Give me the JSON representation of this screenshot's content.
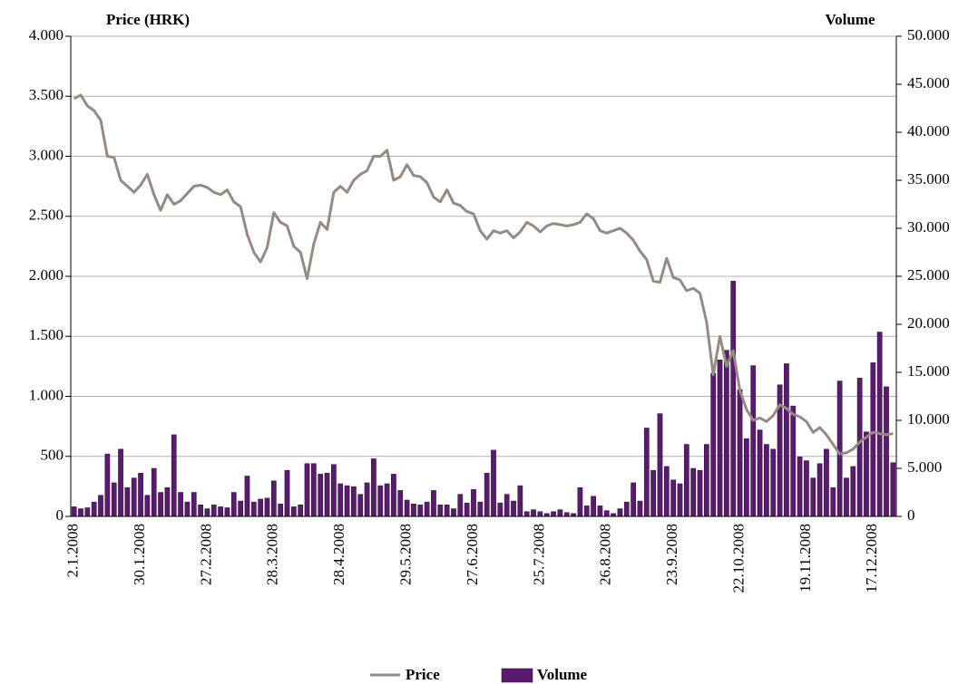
{
  "chart_data": {
    "type": "bar-line",
    "y_label": "Price (HRK)",
    "y2_label": "Volume",
    "categories": [
      "2.1.2008",
      null,
      null,
      null,
      null,
      null,
      null,
      null,
      null,
      null,
      "30.1.2008",
      null,
      null,
      null,
      null,
      null,
      null,
      null,
      null,
      null,
      "27.2.2008",
      null,
      null,
      null,
      null,
      null,
      null,
      null,
      null,
      null,
      "28.3.2008",
      null,
      null,
      null,
      null,
      null,
      null,
      null,
      null,
      null,
      "28.4.2008",
      null,
      null,
      null,
      null,
      null,
      null,
      null,
      null,
      null,
      "29.5.2008",
      null,
      null,
      null,
      null,
      null,
      null,
      null,
      null,
      null,
      "27.6.2008",
      null,
      null,
      null,
      null,
      null,
      null,
      null,
      null,
      null,
      "25.7.2008",
      null,
      null,
      null,
      null,
      null,
      null,
      null,
      null,
      null,
      "26.8.2008",
      null,
      null,
      null,
      null,
      null,
      null,
      null,
      null,
      null,
      "23.9.2008",
      null,
      null,
      null,
      null,
      null,
      null,
      null,
      null,
      null,
      "22.10.2008",
      null,
      null,
      null,
      null,
      null,
      null,
      null,
      null,
      null,
      "19.11.2008",
      null,
      null,
      null,
      null,
      null,
      null,
      null,
      null,
      null,
      "17.12.2008",
      null,
      null,
      null
    ],
    "series": [
      {
        "name": "Price",
        "type": "line",
        "color": "#968a82",
        "values": [
          3480,
          3510,
          3420,
          3380,
          3300,
          3000,
          2990,
          2800,
          2750,
          2700,
          2760,
          2850,
          2680,
          2550,
          2680,
          2600,
          2630,
          2690,
          2750,
          2760,
          2740,
          2700,
          2680,
          2720,
          2620,
          2580,
          2350,
          2200,
          2120,
          2240,
          2530,
          2450,
          2420,
          2250,
          2200,
          1980,
          2270,
          2450,
          2390,
          2700,
          2750,
          2700,
          2800,
          2850,
          2880,
          3000,
          3000,
          3050,
          2800,
          2830,
          2930,
          2840,
          2830,
          2780,
          2660,
          2620,
          2720,
          2610,
          2590,
          2540,
          2520,
          2380,
          2310,
          2380,
          2360,
          2380,
          2320,
          2370,
          2450,
          2420,
          2370,
          2420,
          2440,
          2430,
          2420,
          2430,
          2450,
          2520,
          2480,
          2380,
          2360,
          2380,
          2400,
          2360,
          2300,
          2210,
          2140,
          1960,
          1950,
          2150,
          1990,
          1970,
          1880,
          1900,
          1860,
          1620,
          1180,
          1500,
          1250,
          1380,
          1050,
          890,
          800,
          820,
          790,
          840,
          930,
          900,
          850,
          830,
          790,
          700,
          740,
          680,
          600,
          520,
          530,
          560,
          620,
          660,
          700,
          690,
          680,
          690
        ]
      },
      {
        "name": "Volume",
        "type": "bar",
        "axis": "y2",
        "color": "#5a1a6e",
        "values": [
          1000,
          800,
          900,
          1500,
          2200,
          6500,
          3500,
          7000,
          3000,
          4000,
          4500,
          2200,
          5000,
          2500,
          3000,
          8500,
          2500,
          1500,
          2500,
          1200,
          800,
          1200,
          1000,
          900,
          2500,
          1600,
          4200,
          1500,
          1800,
          1900,
          3700,
          1300,
          4800,
          1000,
          1200,
          5500,
          5500,
          4400,
          4500,
          5400,
          3400,
          3200,
          3100,
          2300,
          3500,
          6000,
          3200,
          3400,
          4400,
          2700,
          1700,
          1300,
          1200,
          1500,
          2700,
          1200,
          1200,
          800,
          2300,
          1400,
          2800,
          1500,
          4500,
          6900,
          1400,
          2300,
          1600,
          3200,
          500,
          700,
          500,
          300,
          500,
          700,
          400,
          300,
          3000,
          1100,
          2100,
          1100,
          600,
          300,
          800,
          1500,
          3500,
          1600,
          9200,
          4800,
          10700,
          5200,
          3800,
          3400,
          7500,
          5000,
          4800,
          7500,
          14900,
          16300,
          17300,
          24500,
          13200,
          8100,
          15700,
          9000,
          7500,
          7000,
          13700,
          15900,
          11500,
          6200,
          5800,
          4000,
          5500,
          7000,
          3000,
          14100,
          4000,
          5200,
          14400,
          8800,
          16000,
          19200,
          13500,
          5600
        ]
      }
    ],
    "ylim": [
      0,
      4000
    ],
    "yticks": [
      0,
      500,
      {
        "value": 1000,
        "label": "1.000"
      },
      {
        "value": 1500,
        "label": "1.500"
      },
      {
        "value": 2000,
        "label": "2.000"
      },
      {
        "value": 2500,
        "label": "2.500"
      },
      {
        "value": 3000,
        "label": "3.000"
      },
      {
        "value": 3500,
        "label": "3.500"
      },
      {
        "value": 4000,
        "label": "4.000"
      }
    ],
    "y2lim": [
      0,
      50000
    ],
    "y2ticks": [
      0,
      {
        "value": 5000,
        "label": "5.000"
      },
      {
        "value": 10000,
        "label": "10.000"
      },
      {
        "value": 15000,
        "label": "15.000"
      },
      {
        "value": 20000,
        "label": "20.000"
      },
      {
        "value": 25000,
        "label": "25.000"
      },
      {
        "value": 30000,
        "label": "30.000"
      },
      {
        "value": 35000,
        "label": "35.000"
      },
      {
        "value": 40000,
        "label": "40.000"
      },
      {
        "value": 45000,
        "label": "45.000"
      },
      {
        "value": 50000,
        "label": "50.000"
      }
    ],
    "grid": true,
    "legend": "bottom"
  }
}
